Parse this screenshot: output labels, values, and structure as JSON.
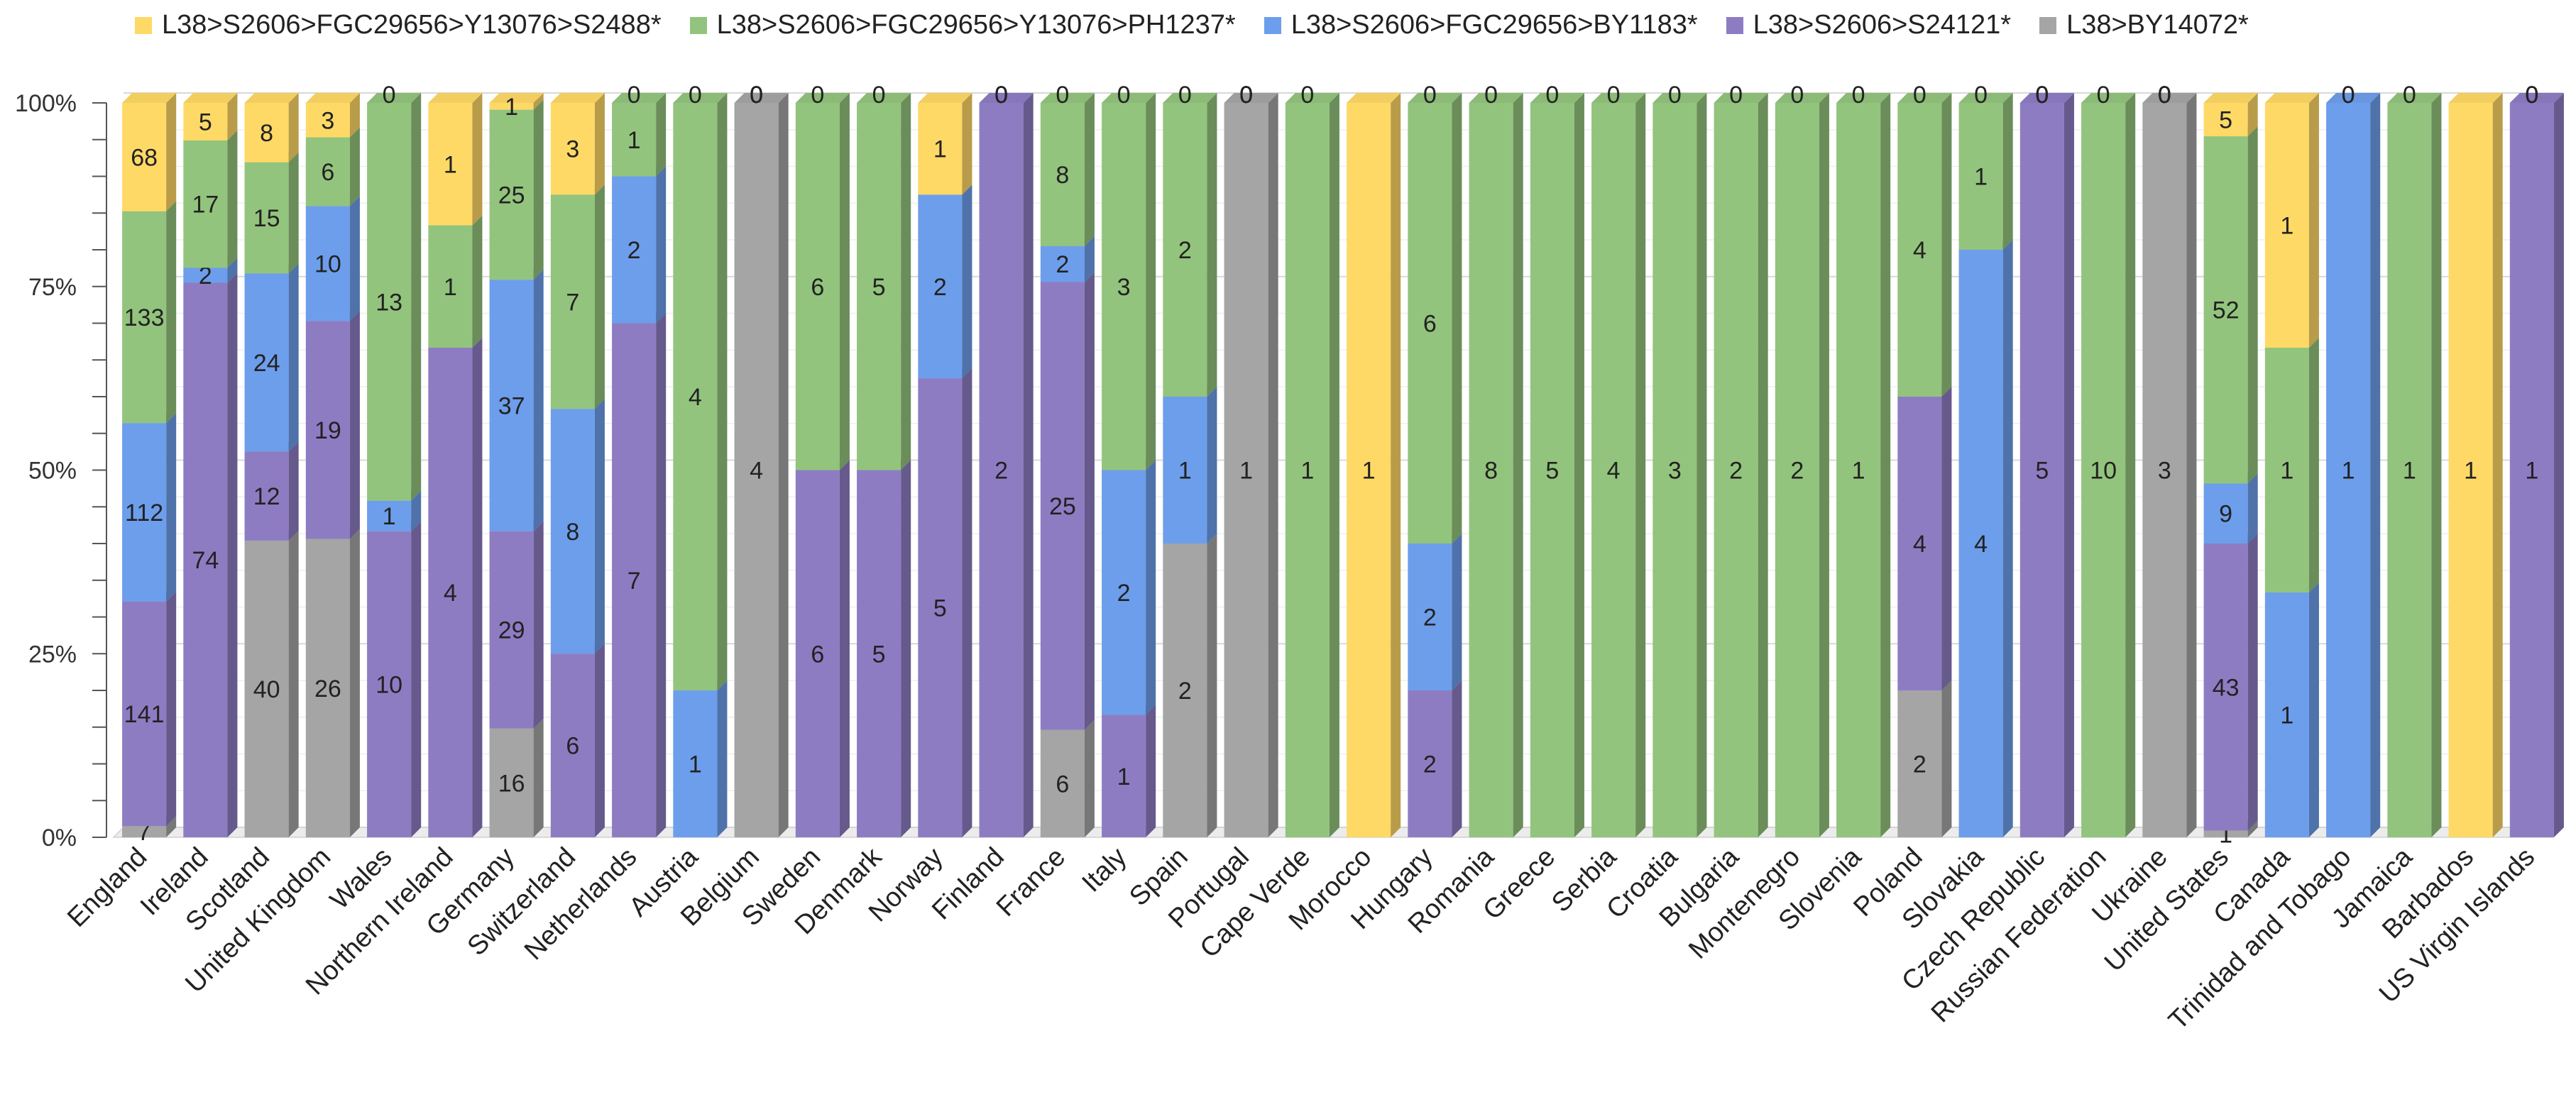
{
  "chart_data": {
    "type": "bar",
    "stacked": "percent",
    "style": "3d-column",
    "y_ticks": [
      "0%",
      "25%",
      "50%",
      "75%",
      "100%"
    ],
    "ylim": [
      0,
      100
    ],
    "grid": true,
    "legend_position": "top",
    "categories": [
      "England",
      "Ireland",
      "Scotland",
      "United Kingdom",
      "Wales",
      "Northern Ireland",
      "Germany",
      "Switzerland",
      "Netherlands",
      "Austria",
      "Belgium",
      "Sweden",
      "Denmark",
      "Norway",
      "Finland",
      "France",
      "Italy",
      "Spain",
      "Portugal",
      "Cape Verde",
      "Morocco",
      "Hungary",
      "Romania",
      "Greece",
      "Serbia",
      "Croatia",
      "Bulgaria",
      "Montenegro",
      "Slovenia",
      "Poland",
      "Slovakia",
      "Czech Republic",
      "Russian Federation",
      "Ukraine",
      "United States",
      "Canada",
      "Trinidad and Tobago",
      "Jamaica",
      "Barbados",
      "US Virgin Islands"
    ],
    "series": [
      {
        "name": "L38>BY14072*",
        "color": "#a5a5a5",
        "values": [
          7,
          0,
          40,
          26,
          0,
          0,
          16,
          0,
          0,
          0,
          4,
          0,
          0,
          0,
          0,
          6,
          0,
          2,
          1,
          0,
          0,
          0,
          0,
          0,
          0,
          0,
          0,
          0,
          0,
          2,
          0,
          0,
          0,
          3,
          1,
          0,
          0,
          0,
          0,
          0
        ]
      },
      {
        "name": "L38>S2606>S24121*",
        "color": "#8e7cc3",
        "values": [
          141,
          74,
          12,
          19,
          10,
          4,
          29,
          6,
          7,
          0,
          0,
          6,
          5,
          5,
          2,
          25,
          1,
          0,
          0,
          0,
          0,
          2,
          0,
          0,
          0,
          0,
          0,
          0,
          0,
          4,
          0,
          5,
          0,
          0,
          43,
          0,
          0,
          0,
          0,
          1
        ]
      },
      {
        "name": "L38>S2606>FGC29656>BY1183*",
        "color": "#6d9eeb",
        "values": [
          112,
          2,
          24,
          10,
          1,
          0,
          37,
          8,
          2,
          1,
          0,
          0,
          0,
          2,
          0,
          2,
          2,
          1,
          0,
          0,
          0,
          2,
          0,
          0,
          0,
          0,
          0,
          0,
          0,
          0,
          4,
          0,
          0,
          0,
          9,
          1,
          1,
          0,
          0,
          0
        ]
      },
      {
        "name": "L38>S2606>FGC29656>Y13076>PH1237*",
        "color": "#93c47d",
        "values": [
          133,
          17,
          15,
          6,
          13,
          1,
          25,
          7,
          1,
          4,
          0,
          6,
          5,
          0,
          0,
          8,
          3,
          2,
          0,
          1,
          0,
          6,
          8,
          5,
          4,
          3,
          2,
          2,
          1,
          4,
          1,
          0,
          10,
          0,
          52,
          1,
          0,
          1,
          0,
          0
        ]
      },
      {
        "name": "L38>S2606>FGC29656>Y13076>S2488*",
        "color": "#ffd966",
        "values": [
          68,
          5,
          8,
          3,
          0,
          1,
          1,
          3,
          0,
          0,
          0,
          0,
          0,
          1,
          0,
          0,
          0,
          0,
          0,
          0,
          1,
          0,
          0,
          0,
          0,
          0,
          0,
          0,
          0,
          0,
          0,
          0,
          0,
          0,
          5,
          1,
          0,
          0,
          1,
          0
        ]
      }
    ]
  }
}
